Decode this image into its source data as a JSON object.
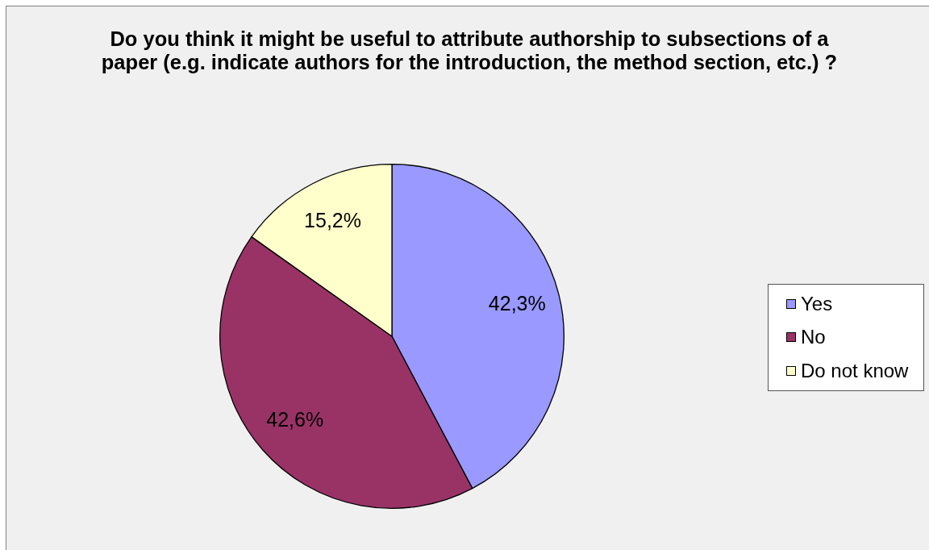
{
  "chart_data": {
    "type": "pie",
    "title": "Do you think it might be useful to attribute authorship to subsections of a paper (e.g. indicate authors for the introduction, the method section, etc.) ?",
    "categories": [
      "Yes",
      "No",
      "Do not know"
    ],
    "values": [
      42.3,
      42.6,
      15.2
    ],
    "colors": [
      "#9999ff",
      "#993366",
      "#ffffcc"
    ],
    "value_labels": [
      "42,3%",
      "42,6%",
      "15,2%"
    ],
    "legend": "right"
  }
}
